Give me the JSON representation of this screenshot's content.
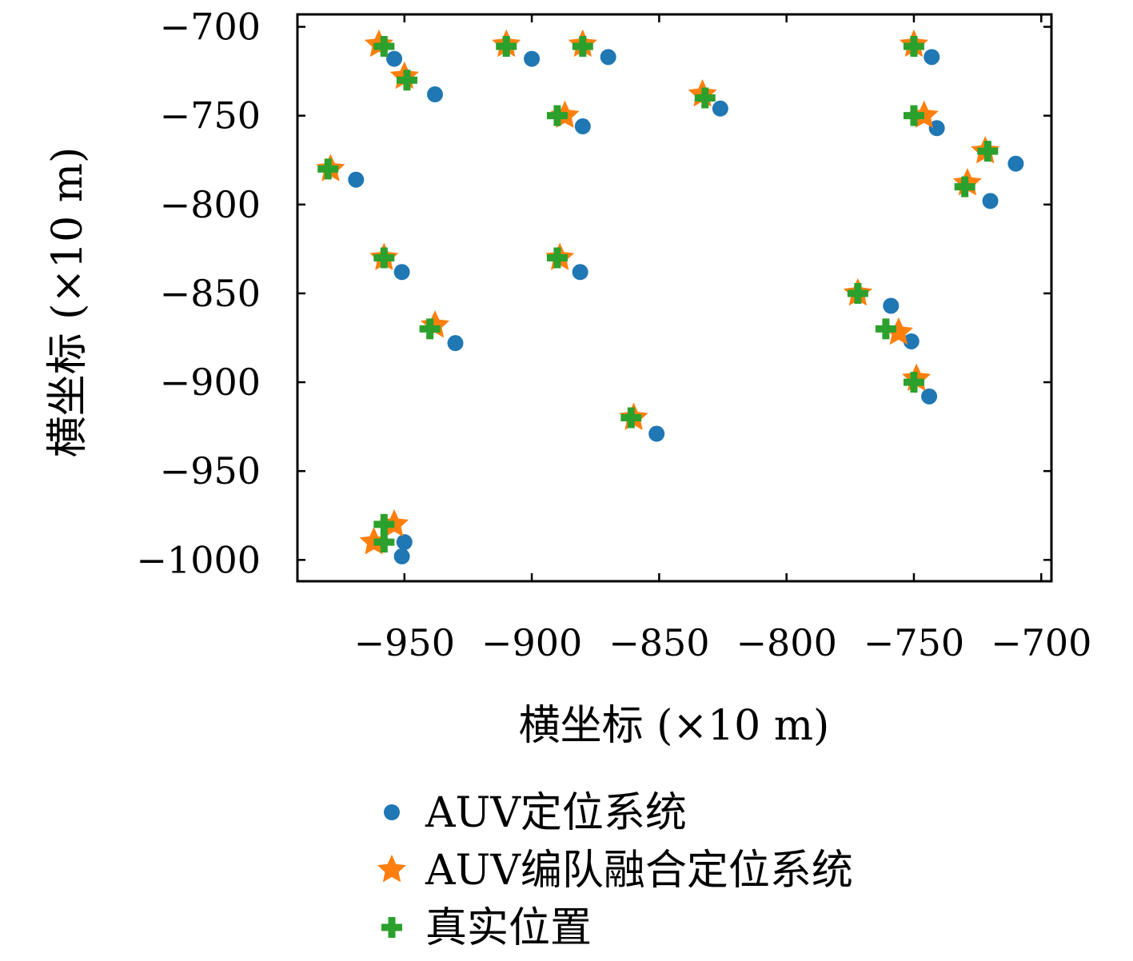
{
  "chart_data": {
    "type": "scatter",
    "xlabel": "横坐标 (×10 m)",
    "ylabel": "横坐标 (×10 m)",
    "xlim": [
      -992,
      -696
    ],
    "ylim": [
      -1012,
      -693
    ],
    "xticks": [
      -950,
      -900,
      -850,
      -800,
      -750,
      -700
    ],
    "xtick_labels": [
      "−950",
      "−900",
      "−850",
      "−800",
      "−750",
      "−700"
    ],
    "yticks": [
      -700,
      -750,
      -800,
      -850,
      -900,
      -950,
      -1000
    ],
    "ytick_labels": [
      "−700",
      "−750",
      "−800",
      "−850",
      "−900",
      "−950",
      "−1000"
    ],
    "grid": false,
    "legend_position": "below",
    "series": [
      {
        "name": "AUV定位系统",
        "color": "#1f77b4",
        "marker": "circle",
        "points": [
          [
            -954,
            -718
          ],
          [
            -938,
            -738
          ],
          [
            -900,
            -718
          ],
          [
            -870,
            -717
          ],
          [
            -826,
            -746
          ],
          [
            -743,
            -717
          ],
          [
            -741,
            -757
          ],
          [
            -880,
            -756
          ],
          [
            -969,
            -786
          ],
          [
            -951,
            -838
          ],
          [
            -881,
            -838
          ],
          [
            -930,
            -878
          ],
          [
            -851,
            -929
          ],
          [
            -759,
            -857
          ],
          [
            -751,
            -877
          ],
          [
            -744,
            -908
          ],
          [
            -720,
            -798
          ],
          [
            -710,
            -777
          ],
          [
            -950,
            -990
          ],
          [
            -951,
            -998
          ]
        ]
      },
      {
        "name": "AUV编队融合定位系统",
        "color": "#ff7f0e",
        "marker": "star",
        "points": [
          [
            -960,
            -710
          ],
          [
            -950,
            -728
          ],
          [
            -910,
            -710
          ],
          [
            -880,
            -710
          ],
          [
            -833,
            -738
          ],
          [
            -750,
            -710
          ],
          [
            -746,
            -750
          ],
          [
            -887,
            -750
          ],
          [
            -979,
            -780
          ],
          [
            -958,
            -830
          ],
          [
            -889,
            -830
          ],
          [
            -938,
            -868
          ],
          [
            -860,
            -920
          ],
          [
            -772,
            -850
          ],
          [
            -756,
            -872
          ],
          [
            -749,
            -898
          ],
          [
            -729,
            -788
          ],
          [
            -722,
            -770
          ],
          [
            -954,
            -980
          ],
          [
            -962,
            -990
          ]
        ]
      },
      {
        "name": "真实位置",
        "color": "#2ca02c",
        "marker": "plus",
        "points": [
          [
            -958,
            -711
          ],
          [
            -949,
            -730
          ],
          [
            -910,
            -711
          ],
          [
            -880,
            -711
          ],
          [
            -832,
            -740
          ],
          [
            -750,
            -711
          ],
          [
            -750,
            -750
          ],
          [
            -890,
            -750
          ],
          [
            -980,
            -780
          ],
          [
            -958,
            -830
          ],
          [
            -890,
            -830
          ],
          [
            -940,
            -870
          ],
          [
            -861,
            -920
          ],
          [
            -772,
            -850
          ],
          [
            -761,
            -870
          ],
          [
            -750,
            -900
          ],
          [
            -730,
            -790
          ],
          [
            -721,
            -770
          ],
          [
            -958,
            -980
          ],
          [
            -958,
            -990
          ]
        ]
      }
    ]
  }
}
